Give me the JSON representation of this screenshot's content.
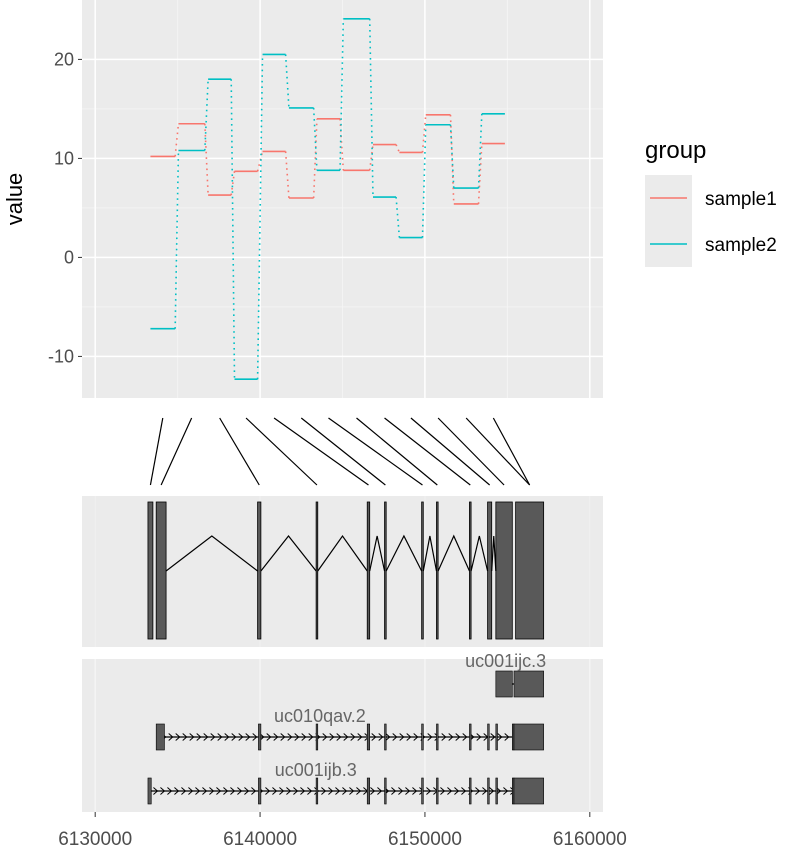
{
  "chart_data": {
    "type": "line",
    "ylabel": "value",
    "yticks": [
      -10,
      0,
      10,
      20
    ],
    "xticks": [
      6130000,
      6140000,
      6150000,
      6160000
    ],
    "xlim": [
      6129200,
      6160800
    ],
    "ylim": [
      -14.2,
      26.0
    ],
    "legend": {
      "title": "group",
      "position": "right",
      "entries": [
        {
          "name": "sample1",
          "color": "#F8766D"
        },
        {
          "name": "sample2",
          "color": "#00BFC4"
        }
      ]
    },
    "series": [
      {
        "name": "sample1",
        "color": "#F8766D",
        "points": [
          [
            6133350,
            10.2
          ],
          [
            6134850,
            10.2
          ],
          [
            6135050,
            13.5
          ],
          [
            6136650,
            13.5
          ],
          [
            6136850,
            6.3
          ],
          [
            6138250,
            6.3
          ],
          [
            6138450,
            8.7
          ],
          [
            6139850,
            8.7
          ],
          [
            6140150,
            10.7
          ],
          [
            6141550,
            10.7
          ],
          [
            6141750,
            6.0
          ],
          [
            6143250,
            6.0
          ],
          [
            6143450,
            14.0
          ],
          [
            6144850,
            14.0
          ],
          [
            6145050,
            8.8
          ],
          [
            6146650,
            8.8
          ],
          [
            6146850,
            11.4
          ],
          [
            6148250,
            11.4
          ],
          [
            6148450,
            10.6
          ],
          [
            6149850,
            10.6
          ],
          [
            6150050,
            14.4
          ],
          [
            6151550,
            14.4
          ],
          [
            6151750,
            5.4
          ],
          [
            6153250,
            5.4
          ],
          [
            6153450,
            11.5
          ],
          [
            6154850,
            11.5
          ]
        ]
      },
      {
        "name": "sample2",
        "color": "#00BFC4",
        "points": [
          [
            6133350,
            -7.2
          ],
          [
            6134850,
            -7.2
          ],
          [
            6135050,
            10.8
          ],
          [
            6136650,
            10.8
          ],
          [
            6136850,
            18.0
          ],
          [
            6138250,
            18.0
          ],
          [
            6138450,
            -12.3
          ],
          [
            6139850,
            -12.3
          ],
          [
            6140150,
            20.5
          ],
          [
            6141550,
            20.5
          ],
          [
            6141750,
            15.1
          ],
          [
            6143250,
            15.1
          ],
          [
            6143450,
            8.8
          ],
          [
            6144850,
            8.8
          ],
          [
            6145050,
            24.1
          ],
          [
            6146650,
            24.1
          ],
          [
            6146850,
            6.1
          ],
          [
            6148250,
            6.1
          ],
          [
            6148450,
            2.0
          ],
          [
            6149850,
            2.0
          ],
          [
            6150050,
            13.4
          ],
          [
            6151550,
            13.4
          ],
          [
            6151750,
            7.0
          ],
          [
            6153250,
            7.0
          ],
          [
            6153450,
            14.5
          ],
          [
            6154850,
            14.5
          ]
        ]
      }
    ],
    "exon_panel": {
      "exons": [
        [
          6133200,
          6133500
        ],
        [
          6133700,
          6134300
        ],
        [
          6139850,
          6140050
        ],
        [
          6143400,
          6143500
        ],
        [
          6146500,
          6146650
        ],
        [
          6147550,
          6147650
        ],
        [
          6149800,
          6149900
        ],
        [
          6150700,
          6150800
        ],
        [
          6152700,
          6152800
        ],
        [
          6153800,
          6154050
        ],
        [
          6154300,
          6155300
        ],
        [
          6155500,
          6157200
        ]
      ],
      "introns": [
        [
          6134300,
          6139850
        ],
        [
          6140050,
          6143400
        ],
        [
          6143500,
          6146500
        ],
        [
          6146650,
          6147550
        ],
        [
          6147650,
          6149800
        ],
        [
          6149900,
          6150700
        ],
        [
          6150800,
          6152700
        ],
        [
          6152800,
          6153800
        ],
        [
          6154050,
          6154300
        ]
      ]
    },
    "transcripts": [
      {
        "name": "uc001ijc.3",
        "start": 6154300,
        "end": 6157200,
        "exons": [
          [
            6154300,
            6155300
          ],
          [
            6155400,
            6157200
          ]
        ]
      },
      {
        "name": "uc010qav.2",
        "start": 6133700,
        "end": 6157200,
        "exons": [
          [
            6133700,
            6134200
          ],
          [
            6139900,
            6140050
          ],
          [
            6143400,
            6143500
          ],
          [
            6146500,
            6146650
          ],
          [
            6147550,
            6147650
          ],
          [
            6149800,
            6149900
          ],
          [
            6150700,
            6150800
          ],
          [
            6152700,
            6152800
          ],
          [
            6153800,
            6153900
          ],
          [
            6154300,
            6154400
          ],
          [
            6155300,
            6155400
          ],
          [
            6155400,
            6157200
          ]
        ]
      },
      {
        "name": "uc001ijb.3",
        "start": 6133200,
        "end": 6157200,
        "exons": [
          [
            6133200,
            6133400
          ],
          [
            6139900,
            6140050
          ],
          [
            6143400,
            6143500
          ],
          [
            6146500,
            6146650
          ],
          [
            6147550,
            6147650
          ],
          [
            6149800,
            6149900
          ],
          [
            6150700,
            6150800
          ],
          [
            6152700,
            6152800
          ],
          [
            6153800,
            6153900
          ],
          [
            6154300,
            6154400
          ],
          [
            6155300,
            6155400
          ],
          [
            6155400,
            6157200
          ]
        ]
      }
    ]
  }
}
